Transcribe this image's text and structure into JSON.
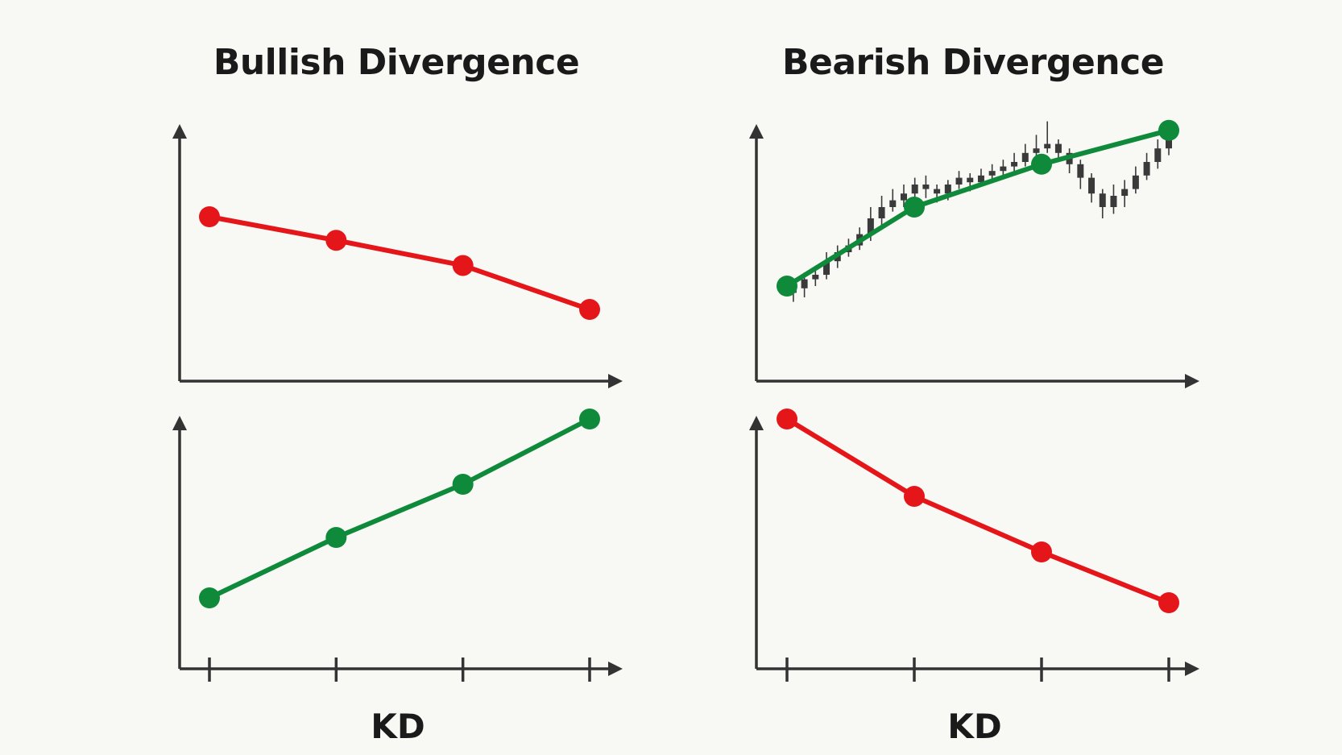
{
  "colors": {
    "red": "#e5161a",
    "green": "#0e8a3a",
    "axis": "#333333",
    "candle": "#3a3a3a"
  },
  "panels": {
    "bullish": {
      "title": "Bullish Divergence",
      "xlabel": "KD"
    },
    "bearish": {
      "title": "Bearish Divergence",
      "xlabel": "KD"
    }
  },
  "chart_data": [
    {
      "name": "bullish-price",
      "type": "line",
      "color": "red",
      "x": [
        1,
        2,
        3,
        4
      ],
      "y": [
        80,
        65,
        49,
        21
      ],
      "ylim": [
        0,
        100
      ],
      "ticks": false
    },
    {
      "name": "bullish-kd",
      "type": "line",
      "color": "green",
      "x": [
        1,
        2,
        3,
        4
      ],
      "y": [
        21,
        46,
        68,
        95
      ],
      "ylim": [
        0,
        100
      ],
      "ticks": true
    },
    {
      "name": "bearish-price",
      "type": "line",
      "color": "green",
      "x": [
        1,
        2,
        3,
        4
      ],
      "y": [
        25,
        60,
        79,
        94
      ],
      "ylim": [
        0,
        100
      ],
      "ticks": false,
      "candles": {
        "start_x": 1.05,
        "end_x": 4.0,
        "ohlc": [
          [
            22,
            24,
            28,
            18
          ],
          [
            24,
            28,
            31,
            20
          ],
          [
            28,
            30,
            34,
            25
          ],
          [
            30,
            36,
            40,
            28
          ],
          [
            36,
            40,
            43,
            33
          ],
          [
            40,
            43,
            46,
            38
          ],
          [
            43,
            48,
            51,
            41
          ],
          [
            48,
            55,
            60,
            45
          ],
          [
            55,
            60,
            65,
            52
          ],
          [
            60,
            63,
            68,
            58
          ],
          [
            63,
            66,
            70,
            60
          ],
          [
            66,
            70,
            73,
            62
          ],
          [
            70,
            68,
            74,
            64
          ],
          [
            68,
            66,
            70,
            62
          ],
          [
            66,
            70,
            72,
            63
          ],
          [
            70,
            73,
            76,
            68
          ],
          [
            73,
            71,
            75,
            67
          ],
          [
            71,
            74,
            77,
            69
          ],
          [
            74,
            76,
            79,
            72
          ],
          [
            76,
            78,
            81,
            73
          ],
          [
            78,
            80,
            84,
            75
          ],
          [
            80,
            84,
            88,
            78
          ],
          [
            84,
            86,
            92,
            82
          ],
          [
            86,
            88,
            98,
            84
          ],
          [
            88,
            84,
            90,
            80
          ],
          [
            84,
            79,
            86,
            75
          ],
          [
            79,
            73,
            81,
            68
          ],
          [
            73,
            66,
            75,
            62
          ],
          [
            66,
            60,
            68,
            55
          ],
          [
            60,
            65,
            70,
            57
          ],
          [
            65,
            68,
            72,
            60
          ],
          [
            68,
            74,
            78,
            66
          ],
          [
            74,
            80,
            84,
            72
          ],
          [
            80,
            86,
            90,
            77
          ],
          [
            86,
            92,
            96,
            83
          ]
        ]
      }
    },
    {
      "name": "bearish-kd",
      "type": "line",
      "color": "red",
      "x": [
        1,
        2,
        3,
        4
      ],
      "y": [
        95,
        63,
        40,
        19
      ],
      "ylim": [
        0,
        100
      ],
      "ticks": true
    }
  ]
}
